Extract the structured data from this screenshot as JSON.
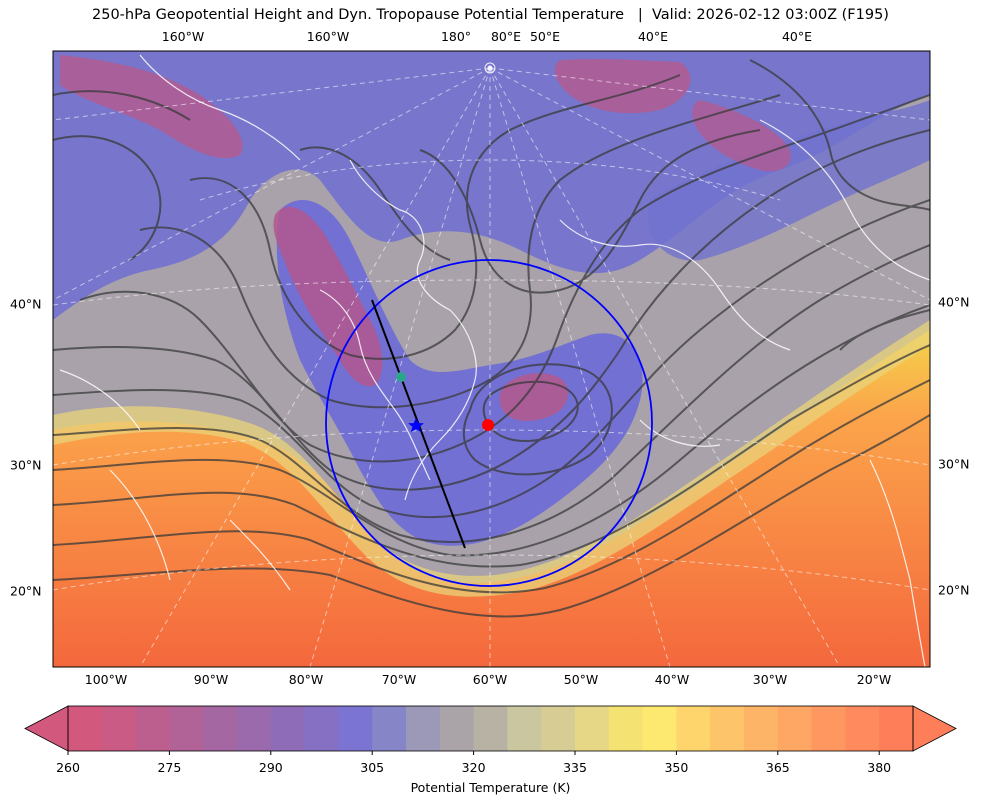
{
  "title": "250-hPa Geopotential Height and Dyn. Tropopause Potential Temperature   |  Valid: 2026-02-12 03:00Z (F195)",
  "map": {
    "top_lon_labels": [
      "160°W",
      "160°W",
      "180°",
      "80°E",
      "50°E",
      "40°E",
      "40°E"
    ],
    "bottom_lon_labels": [
      "100°W",
      "90°W",
      "80°W",
      "70°W",
      "60°W",
      "50°W",
      "40°W",
      "30°W",
      "20°W"
    ],
    "left_lat_labels": [
      "40°N",
      "30°N",
      "20°N"
    ],
    "right_lat_labels": [
      "40°N",
      "30°N",
      "20°N"
    ],
    "markers": {
      "red": {
        "lon": -60,
        "lat": 32.5,
        "color": "#ff0000"
      },
      "blue_star": {
        "lon": -68,
        "lat": 32.5,
        "color": "#0000ff"
      },
      "green": {
        "lon": -70,
        "lat": 35.5,
        "color": "#2ca58d"
      },
      "circle_color": "#0000ff",
      "cross_section_color": "#000000"
    }
  },
  "chart_data": {
    "type": "heatmap",
    "title": "250-hPa Geopotential Height and Dyn. Tropopause Potential Temperature   |  Valid: 2026-02-12 03:00Z (F195)",
    "colorbar": {
      "label": "Potential Temperature (K)",
      "ticks": [
        260,
        275,
        290,
        305,
        320,
        335,
        350,
        365,
        380
      ],
      "range": [
        260,
        385
      ],
      "step": 5,
      "extend": "both",
      "colors": [
        "#d2587d",
        "#c95b85",
        "#bd5f8e",
        "#b16398",
        "#a567a2",
        "#9a6aac",
        "#8f6cb8",
        "#8570c4",
        "#7b74d2",
        "#8585c7",
        "#9b98b8",
        "#aaa3a8",
        "#b8b2a4",
        "#c9c6a0",
        "#d7cc93",
        "#e5d786",
        "#f4e272",
        "#fde870",
        "#fed56c",
        "#fec469",
        "#feb466",
        "#fea663",
        "#fe9760",
        "#fe8a5d",
        "#fe7e5a"
      ]
    }
  }
}
